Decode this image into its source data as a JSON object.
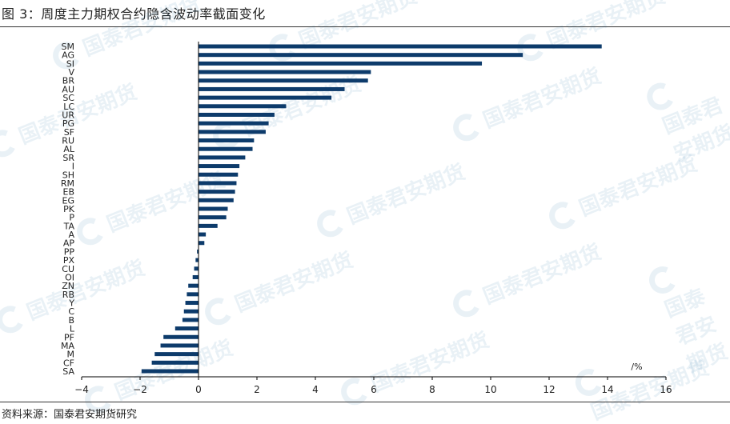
{
  "figure_title": "图 3：周度主力期权合约隐含波动率截面变化",
  "source": "资料来源：国泰君安期货研究",
  "watermark_text": "国泰君安期货",
  "colors": {
    "bar": "#0d3b6b",
    "axis": "#000000",
    "text": "#222222"
  },
  "chart_data": {
    "type": "bar",
    "orientation": "horizontal",
    "unit_label": "/%",
    "xlim": [
      -4,
      16
    ],
    "xticks": [
      -4,
      -2,
      0,
      2,
      4,
      6,
      8,
      10,
      12,
      14,
      16
    ],
    "grid": false,
    "categories": [
      "SM",
      "AG",
      "SI",
      "V",
      "BR",
      "AU",
      "SC",
      "LC",
      "UR",
      "PG",
      "SF",
      "RU",
      "AL",
      "SR",
      "I",
      "SH",
      "RM",
      "EB",
      "EG",
      "PK",
      "P",
      "TA",
      "A",
      "AP",
      "PP",
      "PX",
      "CU",
      "OI",
      "ZN",
      "RB",
      "Y",
      "C",
      "B",
      "L",
      "PF",
      "MA",
      "M",
      "CF",
      "SA"
    ],
    "values": [
      13.8,
      11.1,
      9.7,
      5.9,
      5.8,
      5.0,
      4.55,
      3.0,
      2.6,
      2.4,
      2.3,
      1.9,
      1.85,
      1.6,
      1.4,
      1.35,
      1.3,
      1.25,
      1.2,
      1.0,
      0.95,
      0.65,
      0.25,
      0.2,
      -0.05,
      -0.1,
      -0.15,
      -0.2,
      -0.35,
      -0.4,
      -0.45,
      -0.5,
      -0.55,
      -0.8,
      -1.2,
      -1.3,
      -1.5,
      -1.6,
      -1.95
    ]
  }
}
